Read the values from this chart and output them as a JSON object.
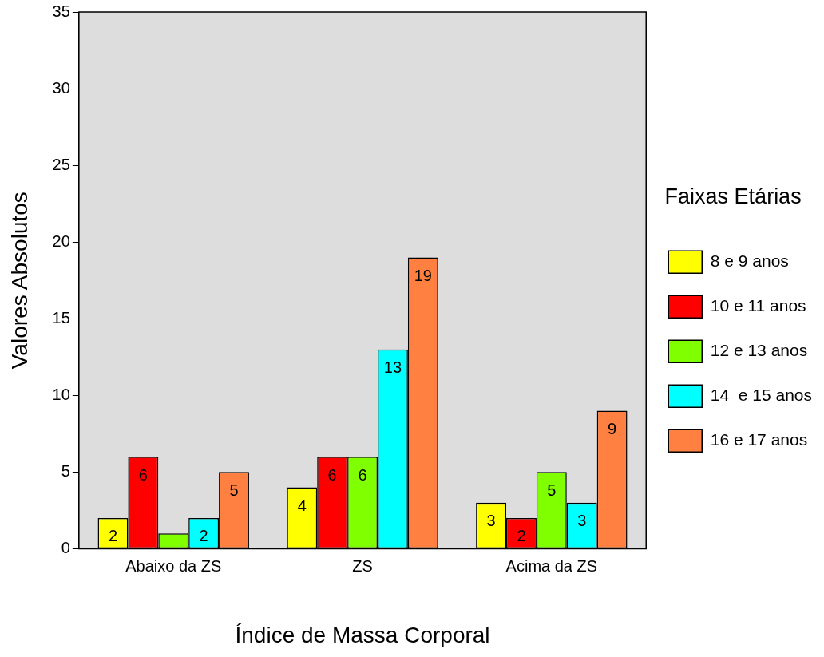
{
  "chart_data": {
    "type": "bar",
    "xlabel": "Índice de Massa Corporal",
    "ylabel": "Valores Absolutos",
    "legend_title": "Faixas Etárias",
    "categories": [
      "Abaixo da ZS",
      "ZS",
      "Acima da ZS"
    ],
    "series": [
      {
        "name": "8 e 9 anos",
        "color": "#ffff00",
        "values": [
          2,
          4,
          3
        ],
        "value_labels": [
          "2",
          "4",
          "3"
        ]
      },
      {
        "name": "10 e 11 anos",
        "color": "#ff0000",
        "values": [
          6,
          6,
          2
        ],
        "value_labels": [
          "6",
          "6",
          "2"
        ]
      },
      {
        "name": "12 e 13 anos",
        "color": "#80ff00",
        "values": [
          1,
          6,
          5
        ],
        "value_labels": [
          null,
          "6",
          "5"
        ]
      },
      {
        "name": "14  e 15 anos",
        "color": "#00ffff",
        "values": [
          2,
          13,
          3
        ],
        "value_labels": [
          "2",
          "13",
          "3"
        ]
      },
      {
        "name": "16 e 17 anos",
        "color": "#ff8040",
        "values": [
          5,
          19,
          9
        ],
        "value_labels": [
          "5",
          "19",
          "9"
        ]
      }
    ],
    "ylim": [
      0,
      35
    ],
    "yticks": [
      0,
      5,
      10,
      15,
      20,
      25,
      30,
      35
    ],
    "grid": false,
    "legend": "right"
  }
}
